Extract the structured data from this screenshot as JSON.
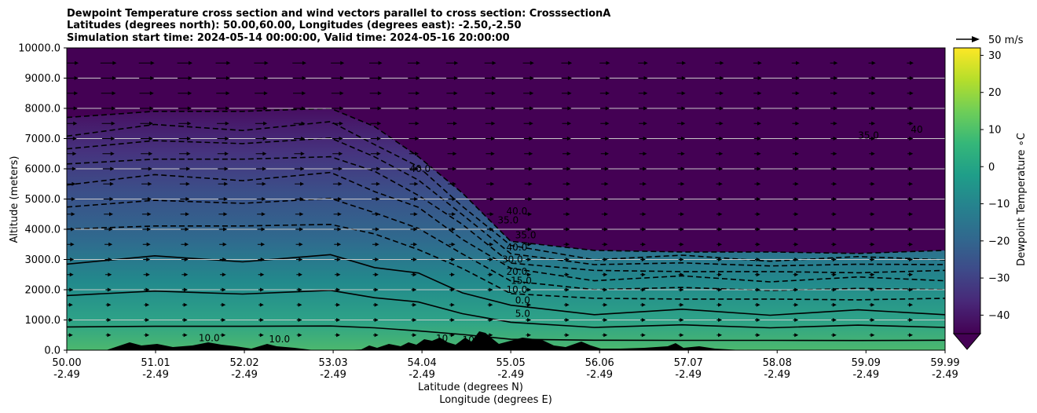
{
  "title_lines": [
    "Dewpoint Temperature cross section and wind vectors parallel to cross section: CrosssectionA",
    "Latitudes (degrees north): 50.00,60.00, Longitudes (degrees east): -2.50,-2.50",
    "Simulation start time: 2024-05-14 00:00:00, Valid time: 2024-05-16 20:00:00"
  ],
  "chart_data": {
    "type": "heatmap",
    "xlabel": "Latitude (degrees N)",
    "xlabel2": "Longitude (degrees E)",
    "ylabel": "Altitude (meters)",
    "ylim": [
      0,
      10000
    ],
    "y_ticks": [
      "0.0",
      "1000.0",
      "2000.0",
      "3000.0",
      "4000.0",
      "5000.0",
      "6000.0",
      "7000.0",
      "8000.0",
      "9000.0",
      "10000.0"
    ],
    "x_ticks": [
      {
        "lat": "50.00",
        "lon": "-2.49"
      },
      {
        "lat": "51.01",
        "lon": "-2.49"
      },
      {
        "lat": "52.02",
        "lon": "-2.49"
      },
      {
        "lat": "53.03",
        "lon": "-2.49"
      },
      {
        "lat": "54.04",
        "lon": "-2.49"
      },
      {
        "lat": "55.05",
        "lon": "-2.49"
      },
      {
        "lat": "56.06",
        "lon": "-2.49"
      },
      {
        "lat": "57.07",
        "lon": "-2.49"
      },
      {
        "lat": "58.08",
        "lon": "-2.49"
      },
      {
        "lat": "59.09",
        "lon": "-2.49"
      },
      {
        "lat": "59.99",
        "lon": "-2.49"
      }
    ],
    "grid": "horizontal",
    "colorbar": {
      "label": "Dewpoint Temperature ∘C",
      "ticks": [
        "30",
        "20",
        "10",
        "0",
        "−10",
        "−20",
        "−30",
        "−40"
      ],
      "range": [
        -45,
        32
      ],
      "extend": "min",
      "colormap": "viridis"
    },
    "quiver_key": "50 m/s",
    "contour_labels": [
      "10.0",
      "10.0",
      "10",
      "10",
      "40.0",
      "40",
      "35.0",
      "40.0",
      "35.0",
      "35.0",
      "40.0",
      "30.0",
      "20.0",
      "15.0",
      "10.0",
      "0.0",
      "5.0"
    ],
    "profile_lat": [
      50.0,
      51.0,
      52.0,
      53.0,
      53.5,
      54.0,
      54.5,
      55.05,
      56.0,
      57.0,
      58.0,
      59.0,
      59.99
    ],
    "profile_top_m": [
      7700,
      7900,
      7900,
      8000,
      7400,
      6400,
      5200,
      3600,
      3300,
      3250,
      3250,
      3200,
      3300
    ],
    "dewpoint_top_c": [
      -30,
      -30,
      -29,
      -30,
      -32,
      -35,
      -39,
      -27,
      -26,
      -26,
      -26,
      -26,
      -27
    ],
    "dewpoint_bottom_c": [
      12,
      13,
      13,
      12,
      11,
      10,
      10,
      9,
      9,
      9,
      9,
      9,
      9
    ]
  },
  "colors": {
    "background": "#ffffff",
    "axis": "#000000",
    "grid": "#c8c8c8",
    "viridis": [
      "#440154",
      "#482878",
      "#3e4a89",
      "#31688e",
      "#26828e",
      "#1f9e89",
      "#35b779",
      "#6ece58",
      "#b5de2b",
      "#fde725"
    ]
  }
}
